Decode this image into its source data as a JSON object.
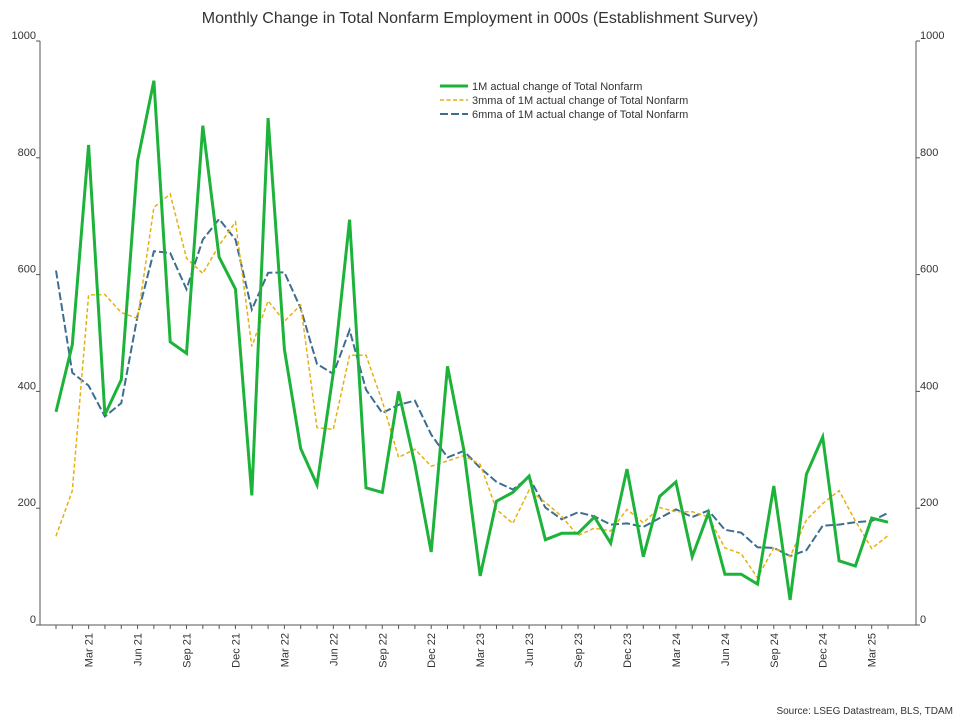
{
  "chart_data": {
    "type": "line",
    "title": "Monthly Change in Total Nonfarm Employment in 000s (Establishment Survey)",
    "source": "Source: LSEG Datastream, BLS, TDAM",
    "ylim": [
      0,
      1000
    ],
    "y_ticks": [
      "0",
      "200",
      "400",
      "600",
      "800",
      "1000"
    ],
    "grid": false,
    "legend_position": "top-center",
    "x": [
      "Jan 21",
      "Feb 21",
      "Mar 21",
      "Apr 21",
      "May 21",
      "Jun 21",
      "Jul 21",
      "Aug 21",
      "Sep 21",
      "Oct 21",
      "Nov 21",
      "Dec 21",
      "Jan 22",
      "Feb 22",
      "Mar 22",
      "Apr 22",
      "May 22",
      "Jun 22",
      "Jul 22",
      "Aug 22",
      "Sep 22",
      "Oct 22",
      "Nov 22",
      "Dec 22",
      "Jan 23",
      "Feb 23",
      "Mar 23",
      "Apr 23",
      "May 23",
      "Jun 23",
      "Jul 23",
      "Aug 23",
      "Sep 23",
      "Oct 23",
      "Nov 23",
      "Dec 23",
      "Jan 24",
      "Feb 24",
      "Mar 24",
      "Apr 24",
      "May 24",
      "Jun 24",
      "Jul 24",
      "Aug 24",
      "Sep 24",
      "Oct 24",
      "Nov 24",
      "Dec 24",
      "Jan 25",
      "Feb 25",
      "Mar 25",
      "Apr 25"
    ],
    "x_tick_labels": [
      {
        "label": "Mar 21",
        "index": 2
      },
      {
        "label": "Jun 21",
        "index": 5
      },
      {
        "label": "Sep 21",
        "index": 8
      },
      {
        "label": "Dec 21",
        "index": 11
      },
      {
        "label": "Mar 22",
        "index": 14
      },
      {
        "label": "Jun 22",
        "index": 17
      },
      {
        "label": "Sep 22",
        "index": 20
      },
      {
        "label": "Dec 22",
        "index": 23
      },
      {
        "label": "Mar 23",
        "index": 26
      },
      {
        "label": "Jun 23",
        "index": 29
      },
      {
        "label": "Sep 23",
        "index": 32
      },
      {
        "label": "Dec 23",
        "index": 35
      },
      {
        "label": "Mar 24",
        "index": 38
      },
      {
        "label": "Jun 24",
        "index": 41
      },
      {
        "label": "Sep 24",
        "index": 44
      },
      {
        "label": "Dec 24",
        "index": 47
      },
      {
        "label": "Mar 25",
        "index": 50
      }
    ],
    "series": [
      {
        "name": "1M actual change of Total Nonfarm",
        "color": "#1db33a",
        "style": "solid",
        "values": [
          365,
          480,
          822,
          360,
          420,
          795,
          932,
          485,
          465,
          855,
          630,
          575,
          222,
          868,
          472,
          302,
          240,
          432,
          694,
          235,
          227,
          400,
          275,
          125,
          443,
          300,
          84,
          212,
          227,
          255,
          146,
          157,
          157,
          185,
          140,
          267,
          117,
          220,
          245,
          117,
          192,
          87,
          87,
          70,
          238,
          43,
          258,
          322,
          110,
          101,
          183,
          176
        ]
      },
      {
        "name": "3mma of 1M actual change of Total Nonfarm",
        "color": "#e6b010",
        "style": "dashed",
        "values": [
          152,
          230,
          565,
          566,
          535,
          525,
          715,
          738,
          628,
          602,
          650,
          690,
          477,
          555,
          520,
          548,
          338,
          335,
          462,
          462,
          383,
          287,
          301,
          272,
          281,
          290,
          275,
          198,
          174,
          231,
          210,
          186,
          153,
          166,
          161,
          198,
          175,
          201,
          194,
          194,
          185,
          132,
          122,
          81,
          132,
          117,
          180,
          208,
          230,
          178,
          131,
          153
        ]
      },
      {
        "name": "6mma of 1M actual change of Total Nonfarm",
        "color": "#3d6e8f",
        "style": "longdash",
        "values": [
          607,
          432,
          410,
          357,
          380,
          530,
          640,
          637,
          575,
          660,
          695,
          660,
          540,
          603,
          604,
          542,
          447,
          430,
          505,
          403,
          363,
          377,
          384,
          326,
          287,
          298,
          269,
          245,
          232,
          253,
          201,
          181,
          193,
          186,
          172,
          174,
          168,
          183,
          198,
          185,
          196,
          163,
          158,
          133,
          132,
          118,
          128,
          170,
          172,
          176,
          178,
          192
        ]
      }
    ]
  }
}
